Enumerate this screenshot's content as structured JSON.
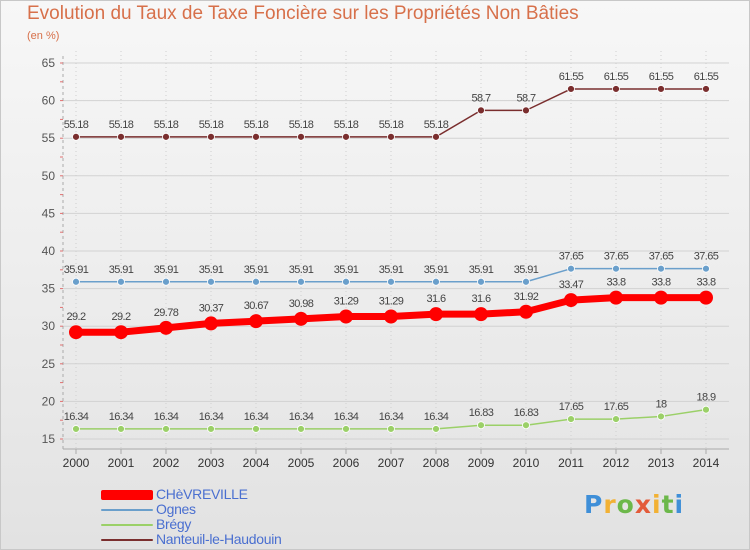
{
  "title": "Evolution du Taux de Taxe Foncière sur les Propriétés Non Bâties",
  "units": "(en %)",
  "logo": "Proxiti",
  "chart_data": {
    "type": "line",
    "categories": [
      "2000",
      "2001",
      "2002",
      "2003",
      "2004",
      "2005",
      "2006",
      "2007",
      "2008",
      "2009",
      "2010",
      "2011",
      "2012",
      "2013",
      "2014"
    ],
    "ylim": [
      15,
      65
    ],
    "yticks": [
      15,
      20,
      25,
      30,
      35,
      40,
      45,
      50,
      55,
      60,
      65
    ],
    "grid": true,
    "legend_position": "bottom-left",
    "series": [
      {
        "name": "CHèVREVILLE",
        "color": "#ff0000",
        "values": [
          29.2,
          29.2,
          29.78,
          30.37,
          30.67,
          30.98,
          31.29,
          31.29,
          31.6,
          31.6,
          31.92,
          33.47,
          33.8,
          33.8,
          33.8
        ],
        "labels": [
          "29.2",
          "29.2",
          "29.78",
          "30.37",
          "30.67",
          "30.98",
          "31.29",
          "31.29",
          "31.6",
          "31.6",
          "31.92",
          "33.47",
          "33.8",
          "33.8",
          "33.8"
        ]
      },
      {
        "name": "Ognes",
        "color": "#6a9fcb",
        "values": [
          35.91,
          35.91,
          35.91,
          35.91,
          35.91,
          35.91,
          35.91,
          35.91,
          35.91,
          35.91,
          35.91,
          37.65,
          37.65,
          37.65,
          37.65
        ],
        "labels": [
          "35.91",
          "35.91",
          "35.91",
          "35.91",
          "35.91",
          "35.91",
          "35.91",
          "35.91",
          "35.91",
          "35.91",
          "35.91",
          "37.65",
          "37.65",
          "37.65",
          "37.65"
        ]
      },
      {
        "name": "Brégy",
        "color": "#9bd068",
        "values": [
          16.34,
          16.34,
          16.34,
          16.34,
          16.34,
          16.34,
          16.34,
          16.34,
          16.34,
          16.83,
          16.83,
          17.65,
          17.65,
          18,
          18.9
        ],
        "labels": [
          "16.34",
          "16.34",
          "16.34",
          "16.34",
          "16.34",
          "16.34",
          "16.34",
          "16.34",
          "16.34",
          "16.83",
          "16.83",
          "17.65",
          "17.65",
          "18",
          "18.9"
        ]
      },
      {
        "name": "Nanteuil-le-Haudouin",
        "color": "#7a2e2e",
        "values": [
          55.18,
          55.18,
          55.18,
          55.18,
          55.18,
          55.18,
          55.18,
          55.18,
          55.18,
          58.7,
          58.7,
          61.55,
          61.55,
          61.55,
          61.55
        ],
        "labels": [
          "55.18",
          "55.18",
          "55.18",
          "55.18",
          "55.18",
          "55.18",
          "55.18",
          "55.18",
          "55.18",
          "58.7",
          "58.7",
          "61.55",
          "61.55",
          "61.55",
          "61.55"
        ]
      }
    ]
  }
}
